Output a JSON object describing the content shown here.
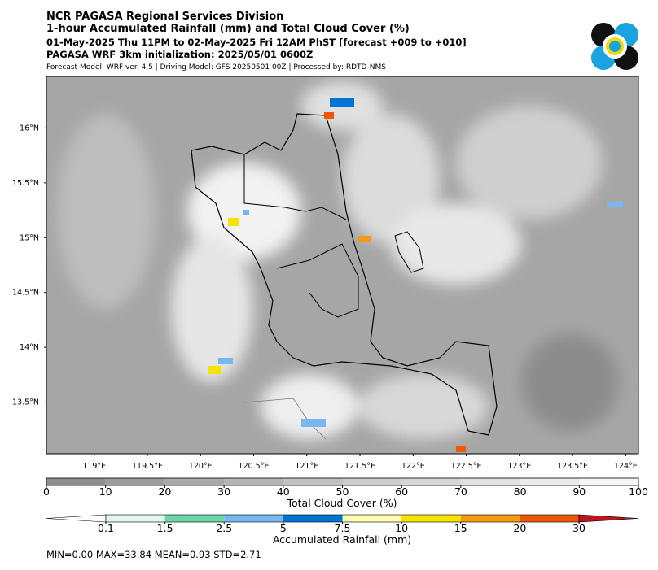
{
  "header": {
    "line1": "NCR PAGASA Regional Services Division",
    "line2": "1-hour Accumulated Rainfall (mm) and Total Cloud Cover (%)",
    "line3": "01-May-2025 Thu 11PM to 02-May-2025 Fri 12AM PhST [forecast +009 to +010]",
    "line4": "PAGASA WRF 3km initialization: 2025/05/01 0600Z",
    "line5": "Forecast Model: WRF ver. 4.5 | Driving Model: GFS 20250501 00Z | Processed by: RDTD-NMS"
  },
  "map": {
    "lonlim": [
      118.55,
      124.12
    ],
    "latlim": [
      13.03,
      16.47
    ],
    "lon_ticks": [
      {
        "value": 119,
        "label": "119°E"
      },
      {
        "value": 119.5,
        "label": "119.5°E"
      },
      {
        "value": 120,
        "label": "120°E"
      },
      {
        "value": 120.5,
        "label": "120.5°E"
      },
      {
        "value": 121,
        "label": "121°E"
      },
      {
        "value": 121.5,
        "label": "121.5°E"
      },
      {
        "value": 122,
        "label": "122°E"
      },
      {
        "value": 122.5,
        "label": "122.5°E"
      },
      {
        "value": 123,
        "label": "123°E"
      },
      {
        "value": 123.5,
        "label": "123.5°E"
      },
      {
        "value": 124,
        "label": "124°E"
      }
    ],
    "lat_ticks": [
      {
        "value": 16,
        "label": "16°N"
      },
      {
        "value": 15.5,
        "label": "15.5°N"
      },
      {
        "value": 15,
        "label": "15°N"
      },
      {
        "value": 14.5,
        "label": "14.5°N"
      },
      {
        "value": 14,
        "label": "14°N"
      },
      {
        "value": 13.5,
        "label": "13.5°N"
      }
    ]
  },
  "cloud_colorbar": {
    "label": "Total Cloud Cover (%)",
    "lim": [
      0,
      100
    ],
    "ticks": [
      0,
      10,
      20,
      30,
      40,
      50,
      60,
      70,
      80,
      90,
      100
    ],
    "colors": [
      "#8f8f8f",
      "#9c9c9c",
      "#a9a9a9",
      "#b5b5b5",
      "#c1c1c1",
      "#cccccc",
      "#d7d7d7",
      "#e1e1e1",
      "#ebebeb",
      "#f6f6f6"
    ]
  },
  "rain_colorbar": {
    "label": "Accumulated Rainfall (mm)",
    "ticks": [
      {
        "value": 0.1,
        "label": "0.1"
      },
      {
        "value": 1.5,
        "label": "1.5"
      },
      {
        "value": 2.5,
        "label": "2.5"
      },
      {
        "value": 5,
        "label": "5"
      },
      {
        "value": 7.5,
        "label": "7.5"
      },
      {
        "value": 10,
        "label": "10"
      },
      15,
      20,
      30
    ],
    "under_color": "#ffffff",
    "colors": [
      "#dff7ee",
      "#6fd3a8",
      "#77b8f0",
      "#0073d6",
      "#fdfcb0",
      "#f7e300",
      "#f29a12",
      "#f0560a"
    ],
    "over_color": "#c0141a"
  },
  "stats": "MIN=0.00   MAX=33.84   MEAN=0.93   STD=2.71"
}
